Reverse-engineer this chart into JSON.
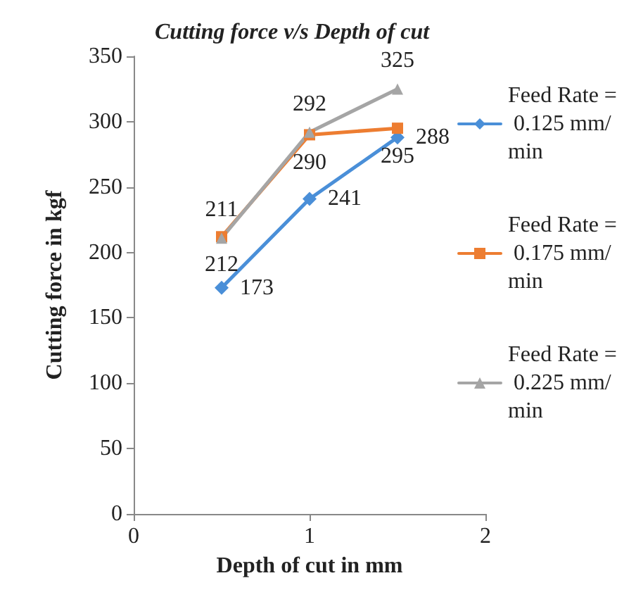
{
  "chart_data": {
    "type": "line",
    "title": "Cutting force v/s Depth of cut",
    "xlabel": "Depth of cut in mm",
    "ylabel": "Cutting force in kgf",
    "x": [
      0.5,
      1,
      1.5
    ],
    "series": [
      {
        "name": "Feed Rate = 0.125 mm/min",
        "color": "#4a8fd8",
        "marker": "diamond",
        "values": [
          173,
          241,
          288
        ]
      },
      {
        "name": "Feed Rate = 0.175 mm/min",
        "color": "#ed7d31",
        "marker": "square",
        "values": [
          212,
          290,
          295
        ]
      },
      {
        "name": "Feed Rate = 0.225 mm/min",
        "color": "#a5a5a5",
        "marker": "triangle",
        "values": [
          211,
          292,
          325
        ]
      }
    ],
    "xlim": [
      0,
      2
    ],
    "xticks": [
      0,
      1,
      2
    ],
    "ylim": [
      0,
      350
    ],
    "yticks": [
      0,
      50,
      100,
      150,
      200,
      250,
      300,
      350
    ],
    "grid": false,
    "legend": "right",
    "data_labels": true
  }
}
